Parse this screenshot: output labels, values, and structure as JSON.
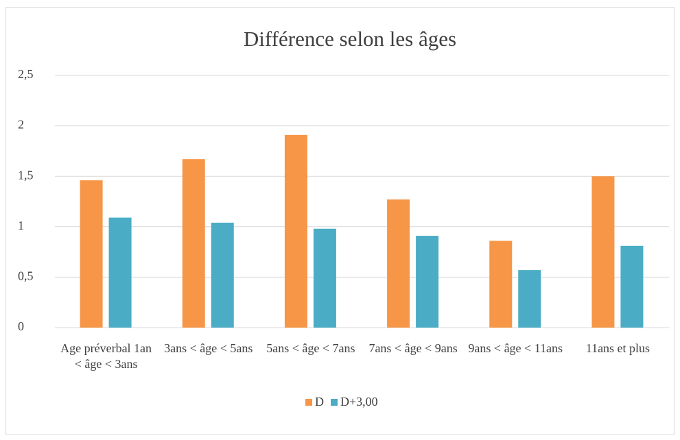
{
  "chart_data": {
    "type": "bar",
    "title": "Différence selon les âges",
    "categories": [
      "Age préverbal 1an < âge < 3ans",
      "3ans < âge < 5ans",
      "5ans < âge < 7ans",
      "7ans < âge < 9ans",
      "9ans < âge < 11ans",
      "11ans et plus"
    ],
    "series": [
      {
        "name": "D",
        "color": "#f79646",
        "values": [
          1.46,
          1.67,
          1.91,
          1.27,
          0.86,
          1.5
        ]
      },
      {
        "name": "D+3,00",
        "color": "#4bacc6",
        "values": [
          1.09,
          1.04,
          0.98,
          0.91,
          0.57,
          0.81
        ]
      }
    ],
    "ylim": [
      0,
      2.5
    ],
    "yticks": [
      0,
      {
        "value": 0.5,
        "label": "0,5"
      },
      1,
      {
        "value": 1.5,
        "label": "1,5"
      },
      2,
      {
        "value": 2.5,
        "label": "2,5"
      }
    ],
    "grid": true,
    "legend": "bottom"
  }
}
